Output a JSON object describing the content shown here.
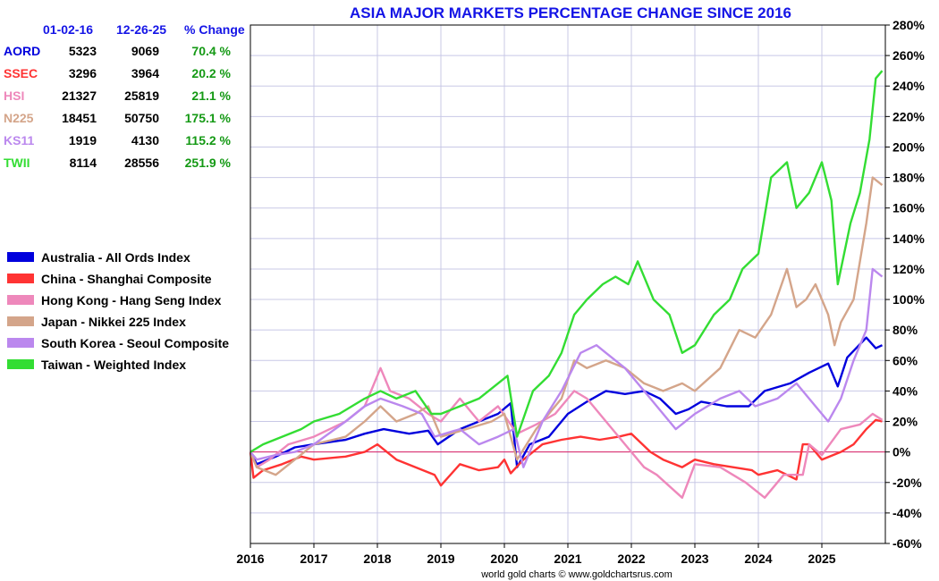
{
  "chart_data": {
    "type": "line",
    "title": "ASIA MAJOR MARKETS PERCENTAGE CHANGE SINCE 2016",
    "credit": "world gold charts © www.goldchartsrus.com",
    "xlabel": "",
    "ylabel": "",
    "xlim": [
      2016,
      2026
    ],
    "ylim": [
      -60,
      280
    ],
    "x_ticks": [
      "2016",
      "2017",
      "2018",
      "2019",
      "2020",
      "2021",
      "2022",
      "2023",
      "2024",
      "2025"
    ],
    "y_ticks": [
      "280%",
      "260%",
      "240%",
      "220%",
      "200%",
      "180%",
      "160%",
      "140%",
      "120%",
      "100%",
      "80%",
      "60%",
      "40%",
      "20%",
      "0%",
      "-20%",
      "-40%",
      "-60%"
    ],
    "table": {
      "headers": [
        "01-02-16",
        "12-26-25",
        "% Change"
      ],
      "rows": [
        {
          "symbol": "AORD",
          "start": "5323",
          "end": "9069",
          "change": "70.4 %",
          "color": "#0000dd"
        },
        {
          "symbol": "SSEC",
          "start": "3296",
          "end": "3964",
          "change": "20.2 %",
          "color": "#ff3333"
        },
        {
          "symbol": "HSI",
          "start": "21327",
          "end": "25819",
          "change": "21.1 %",
          "color": "#ee88bb"
        },
        {
          "symbol": "N225",
          "start": "18451",
          "end": "50750",
          "change": "175.1 %",
          "color": "#d4a58a"
        },
        {
          "symbol": "KS11",
          "start": "1919",
          "end": "4130",
          "change": "115.2 %",
          "color": "#bb88ee"
        },
        {
          "symbol": "TWII",
          "start": "8114",
          "end": "28556",
          "change": "251.9 %",
          "color": "#33dd33"
        }
      ]
    },
    "series": [
      {
        "name": "Australia - All Ords Index",
        "color": "#0000dd",
        "x": [
          2016,
          2016.1,
          2016.4,
          2016.7,
          2017,
          2017.5,
          2017.8,
          2018.1,
          2018.5,
          2018.8,
          2018.95,
          2019.3,
          2019.6,
          2019.9,
          2020.1,
          2020.2,
          2020.4,
          2020.7,
          2021,
          2021.3,
          2021.6,
          2021.9,
          2022.2,
          2022.45,
          2022.7,
          2022.9,
          2023.1,
          2023.5,
          2023.85,
          2024.1,
          2024.5,
          2024.8,
          2025.1,
          2025.25,
          2025.4,
          2025.7,
          2025.85,
          2025.95
        ],
        "y": [
          0,
          -8,
          -3,
          3,
          5,
          8,
          12,
          15,
          12,
          14,
          5,
          15,
          20,
          25,
          32,
          -10,
          5,
          10,
          25,
          33,
          40,
          38,
          40,
          35,
          25,
          28,
          33,
          30,
          30,
          40,
          45,
          52,
          58,
          43,
          62,
          75,
          68,
          70
        ]
      },
      {
        "name": "China - Shanghai Composite",
        "color": "#ff3333",
        "x": [
          2016,
          2016.05,
          2016.2,
          2016.5,
          2016.8,
          2017,
          2017.5,
          2017.8,
          2018,
          2018.3,
          2018.6,
          2018.9,
          2019,
          2019.3,
          2019.6,
          2019.9,
          2020,
          2020.1,
          2020.3,
          2020.6,
          2020.9,
          2021.2,
          2021.5,
          2021.8,
          2022,
          2022.3,
          2022.5,
          2022.8,
          2023,
          2023.3,
          2023.6,
          2023.9,
          2024,
          2024.3,
          2024.6,
          2024.7,
          2024.8,
          2025,
          2025.3,
          2025.5,
          2025.7,
          2025.85,
          2025.95
        ],
        "y": [
          0,
          -17,
          -12,
          -8,
          -3,
          -5,
          -3,
          0,
          5,
          -5,
          -10,
          -15,
          -22,
          -8,
          -12,
          -10,
          -5,
          -14,
          -5,
          5,
          8,
          10,
          8,
          10,
          12,
          0,
          -5,
          -10,
          -5,
          -8,
          -10,
          -12,
          -15,
          -12,
          -18,
          5,
          5,
          -5,
          0,
          5,
          15,
          21,
          20
        ]
      },
      {
        "name": "Hong Kong - Hang Seng Index",
        "color": "#ee88bb",
        "x": [
          2016,
          2016.1,
          2016.3,
          2016.6,
          2017,
          2017.5,
          2017.8,
          2018.05,
          2018.2,
          2018.5,
          2018.8,
          2019,
          2019.3,
          2019.6,
          2019.9,
          2020.2,
          2020.5,
          2020.8,
          2021.1,
          2021.3,
          2021.6,
          2021.9,
          2022.2,
          2022.4,
          2022.8,
          2023,
          2023.4,
          2023.8,
          2024.1,
          2024.4,
          2024.7,
          2024.8,
          2025,
          2025.3,
          2025.6,
          2025.8,
          2025.95
        ],
        "y": [
          0,
          -10,
          -5,
          5,
          10,
          20,
          30,
          55,
          40,
          35,
          25,
          20,
          35,
          20,
          30,
          12,
          18,
          25,
          40,
          35,
          20,
          5,
          -10,
          -15,
          -30,
          -8,
          -10,
          -20,
          -30,
          -15,
          -15,
          5,
          -2,
          15,
          18,
          25,
          21
        ]
      },
      {
        "name": "Japan - Nikkei 225 Index",
        "color": "#d4a58a",
        "x": [
          2016,
          2016.1,
          2016.4,
          2016.7,
          2017,
          2017.5,
          2017.8,
          2018.05,
          2018.3,
          2018.6,
          2018.8,
          2019,
          2019.4,
          2019.8,
          2020,
          2020.2,
          2020.5,
          2020.9,
          2021.1,
          2021.3,
          2021.6,
          2021.9,
          2022.2,
          2022.5,
          2022.8,
          2023,
          2023.4,
          2023.7,
          2023.95,
          2024.2,
          2024.45,
          2024.6,
          2024.75,
          2024.9,
          2025.1,
          2025.2,
          2025.3,
          2025.5,
          2025.7,
          2025.8,
          2025.95
        ],
        "y": [
          0,
          -10,
          -15,
          -5,
          5,
          10,
          20,
          30,
          20,
          25,
          30,
          10,
          15,
          20,
          25,
          -5,
          15,
          35,
          60,
          55,
          60,
          55,
          45,
          40,
          45,
          40,
          55,
          80,
          75,
          90,
          120,
          95,
          100,
          110,
          90,
          70,
          85,
          100,
          150,
          180,
          175
        ]
      },
      {
        "name": "South Korea - Seoul Composite",
        "color": "#bb88ee",
        "x": [
          2016,
          2016.1,
          2016.4,
          2016.7,
          2017,
          2017.5,
          2017.8,
          2018.05,
          2018.4,
          2018.7,
          2018.9,
          2019.3,
          2019.6,
          2019.9,
          2020.15,
          2020.3,
          2020.6,
          2020.9,
          2021.2,
          2021.45,
          2021.6,
          2021.9,
          2022.3,
          2022.7,
          2023,
          2023.4,
          2023.7,
          2023.95,
          2024.3,
          2024.6,
          2024.9,
          2025.1,
          2025.3,
          2025.5,
          2025.7,
          2025.8,
          2025.95
        ],
        "y": [
          0,
          -5,
          -2,
          0,
          5,
          20,
          30,
          35,
          30,
          25,
          10,
          15,
          5,
          10,
          15,
          -10,
          20,
          40,
          65,
          70,
          65,
          55,
          35,
          15,
          25,
          35,
          40,
          30,
          35,
          45,
          30,
          20,
          35,
          60,
          80,
          120,
          115
        ]
      },
      {
        "name": "Taiwan - Weighted Index",
        "color": "#33dd33",
        "x": [
          2016,
          2016.2,
          2016.5,
          2016.8,
          2017,
          2017.4,
          2017.8,
          2018.05,
          2018.3,
          2018.6,
          2018.85,
          2019,
          2019.3,
          2019.6,
          2019.9,
          2020.05,
          2020.2,
          2020.45,
          2020.7,
          2020.9,
          2021.1,
          2021.3,
          2021.55,
          2021.75,
          2021.95,
          2022.1,
          2022.35,
          2022.6,
          2022.8,
          2023,
          2023.3,
          2023.55,
          2023.75,
          2024,
          2024.2,
          2024.45,
          2024.6,
          2024.8,
          2025,
          2025.15,
          2025.25,
          2025.45,
          2025.6,
          2025.75,
          2025.85,
          2025.95
        ],
        "y": [
          0,
          5,
          10,
          15,
          20,
          25,
          35,
          40,
          35,
          40,
          25,
          25,
          30,
          35,
          45,
          50,
          10,
          40,
          50,
          65,
          90,
          100,
          110,
          115,
          110,
          125,
          100,
          90,
          65,
          70,
          90,
          100,
          120,
          130,
          180,
          190,
          160,
          170,
          190,
          165,
          110,
          150,
          170,
          205,
          245,
          250
        ]
      }
    ]
  }
}
